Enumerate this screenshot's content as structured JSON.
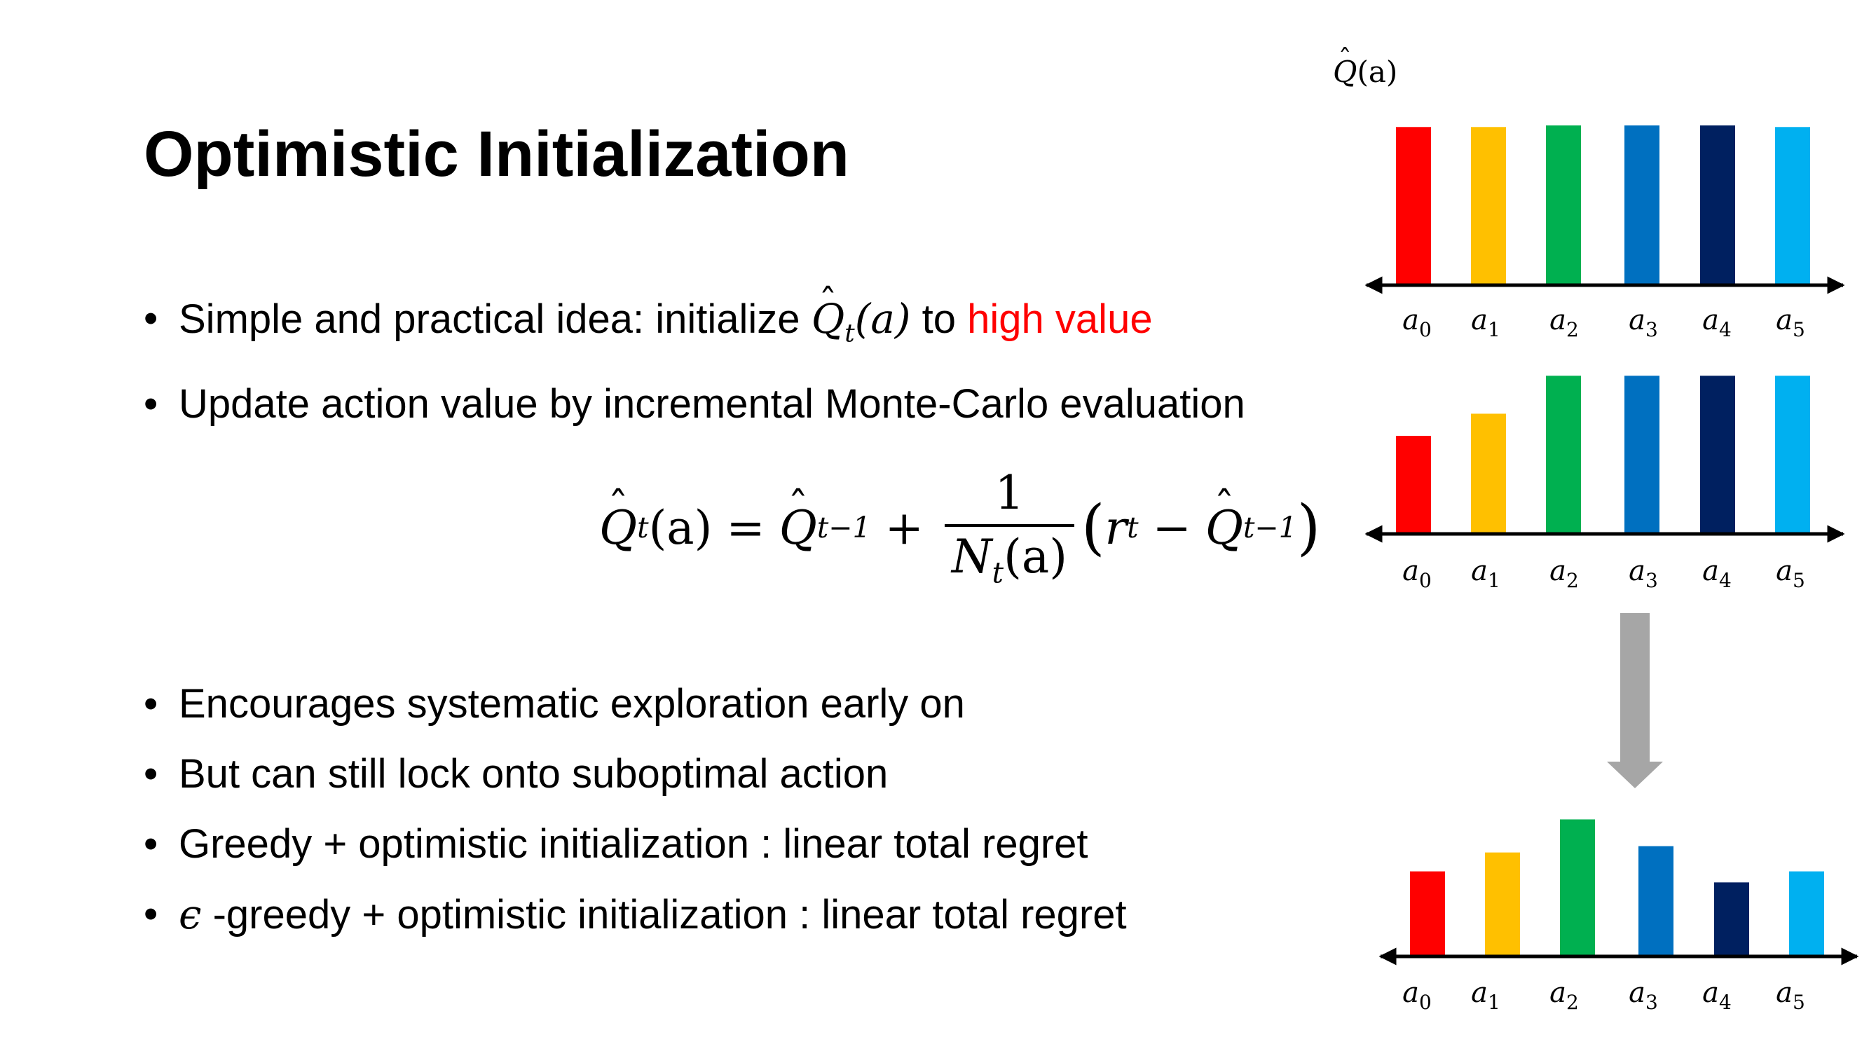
{
  "slide": {
    "title": "Optimistic Initialization",
    "bullets_top": [
      {
        "pre": "Simple and practical idea: initialize ",
        "math_symbol": "Q",
        "math_sub": "t",
        "math_arg": "(a)",
        "mid": " to ",
        "highlight": "high value"
      },
      {
        "text": "Update action value by incremental Monte-Carlo evaluation"
      }
    ],
    "formula": {
      "lhs_symbol": "Q",
      "lhs_sub": "t",
      "lhs_arg": "(a)",
      "equals": "=",
      "prev_symbol": "Q",
      "prev_sub": "t−1",
      "plus": "+",
      "frac_num": "1",
      "frac_den_symbol": "N",
      "frac_den_sub": "t",
      "frac_den_arg": "(a)",
      "open_paren": "(",
      "r_symbol": "r",
      "r_sub": "t",
      "minus": "−",
      "last_symbol": "Q",
      "last_sub": "t−1",
      "close_paren": ")"
    },
    "bullets_bottom": [
      {
        "text": "Encourages systematic exploration early on"
      },
      {
        "text": "But can still lock onto suboptimal action"
      },
      {
        "text": "Greedy + optimistic initialization : linear total regret"
      },
      {
        "eps": "ϵ",
        "text": " -greedy + optimistic initialization : linear total regret"
      }
    ],
    "ylabel": {
      "symbol": "Q",
      "arg": "(a)"
    }
  },
  "chart_data": [
    {
      "type": "bar",
      "ylabel": "Q̂(a)",
      "categories": [
        "a0",
        "a1",
        "a2",
        "a3",
        "a4",
        "a5"
      ],
      "tick_labels": [
        {
          "base": "a",
          "sub": "0"
        },
        {
          "base": "a",
          "sub": "1"
        },
        {
          "base": "a",
          "sub": "2"
        },
        {
          "base": "a",
          "sub": "3"
        },
        {
          "base": "a",
          "sub": "4"
        },
        {
          "base": "a",
          "sub": "5"
        }
      ],
      "values": [
        1.0,
        1.0,
        1.01,
        1.01,
        1.01,
        1.0
      ],
      "colors": [
        "#ff0000",
        "#ffc000",
        "#00b050",
        "#0070c0",
        "#002060",
        "#00b0f0"
      ],
      "ylim": [
        0,
        1.05
      ]
    },
    {
      "type": "bar",
      "categories": [
        "a0",
        "a1",
        "a2",
        "a3",
        "a4",
        "a5"
      ],
      "tick_labels": [
        {
          "base": "a",
          "sub": "0"
        },
        {
          "base": "a",
          "sub": "1"
        },
        {
          "base": "a",
          "sub": "2"
        },
        {
          "base": "a",
          "sub": "3"
        },
        {
          "base": "a",
          "sub": "4"
        },
        {
          "base": "a",
          "sub": "5"
        }
      ],
      "values": [
        0.62,
        0.76,
        1.0,
        1.0,
        1.0,
        1.0
      ],
      "colors": [
        "#ff0000",
        "#ffc000",
        "#00b050",
        "#0070c0",
        "#002060",
        "#00b0f0"
      ],
      "ylim": [
        0,
        1.05
      ]
    },
    {
      "type": "bar",
      "categories": [
        "a0",
        "a1",
        "a2",
        "a3",
        "a4",
        "a5"
      ],
      "tick_labels": [
        {
          "base": "a",
          "sub": "0"
        },
        {
          "base": "a",
          "sub": "1"
        },
        {
          "base": "a",
          "sub": "2"
        },
        {
          "base": "a",
          "sub": "3"
        },
        {
          "base": "a",
          "sub": "4"
        },
        {
          "base": "a",
          "sub": "5"
        }
      ],
      "values": [
        0.54,
        0.66,
        0.87,
        0.7,
        0.47,
        0.54
      ],
      "colors": [
        "#ff0000",
        "#ffc000",
        "#00b050",
        "#0070c0",
        "#002060",
        "#00b0f0"
      ],
      "ylim": [
        0,
        1.05
      ]
    }
  ],
  "arrow_color": "#a6a6a6",
  "axis_color": "#000000"
}
